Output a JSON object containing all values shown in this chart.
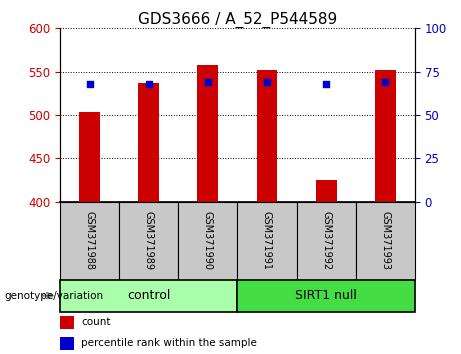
{
  "title": "GDS3666 / A_52_P544589",
  "samples": [
    "GSM371988",
    "GSM371989",
    "GSM371990",
    "GSM371991",
    "GSM371992",
    "GSM371993"
  ],
  "count_values": [
    503,
    537,
    558,
    552,
    425,
    552
  ],
  "percentile_values": [
    68,
    68,
    69,
    69,
    68,
    69
  ],
  "ylim_left": [
    400,
    600
  ],
  "yticks_left": [
    400,
    450,
    500,
    550,
    600
  ],
  "ylim_right": [
    0,
    100
  ],
  "yticks_right": [
    0,
    25,
    50,
    75,
    100
  ],
  "bar_color": "#cc0000",
  "dot_color": "#0000cc",
  "bar_bottom": 400,
  "control_color": "#aaffaa",
  "sirt1_color": "#44dd44",
  "group_label_text": "genotype/variation",
  "legend_count": "count",
  "legend_percentile": "percentile rank within the sample",
  "title_fontsize": 11,
  "tick_fontsize": 8.5,
  "sample_fontsize": 7,
  "group_fontsize": 9,
  "legend_fontsize": 7.5,
  "bar_width": 0.35,
  "n_control": 3,
  "n_sirt": 3
}
